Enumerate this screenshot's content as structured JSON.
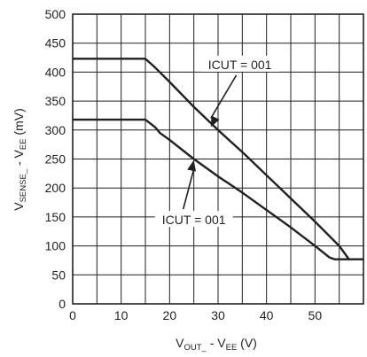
{
  "chart_data": {
    "type": "line",
    "title": "",
    "xlabel": {
      "main": "V",
      "sub1": "OUT_",
      "mid": " - V",
      "sub2": "EE",
      "unit": " (V)"
    },
    "ylabel": {
      "main": "V",
      "sub1": "SENSE_",
      "mid": " - V",
      "sub2": "EE",
      "unit": " (mV)"
    },
    "xlim": [
      0,
      60
    ],
    "ylim": [
      0,
      500
    ],
    "xticks": [
      0,
      10,
      20,
      30,
      40,
      50
    ],
    "yticks": [
      0,
      50,
      100,
      150,
      200,
      250,
      300,
      350,
      400,
      450,
      500
    ],
    "grid": true,
    "series": [
      {
        "x": [
          0,
          15,
          17,
          20,
          25,
          30,
          35,
          40,
          45,
          50,
          55,
          57
        ],
        "values": [
          423,
          423,
          408,
          383,
          340,
          300,
          262,
          222,
          182,
          142,
          100,
          77
        ]
      },
      {
        "x": [
          0,
          15,
          17,
          18,
          20,
          25,
          30,
          35,
          40,
          45,
          50,
          53,
          54,
          60
        ],
        "values": [
          318,
          318,
          305,
          295,
          283,
          250,
          220,
          192,
          162,
          132,
          100,
          80,
          77,
          77
        ]
      }
    ],
    "annotations": [
      {
        "text": "ICUT = 001",
        "x": 34.5,
        "y": 410,
        "arrow_to": [
          28.5,
          305
        ]
      },
      {
        "text": "ICUT = 001",
        "x": 25,
        "y": 142,
        "arrow_to": [
          25,
          248
        ]
      }
    ]
  },
  "colors": {
    "line": "#231f20",
    "grid": "#231f20",
    "text": "#231f20"
  }
}
